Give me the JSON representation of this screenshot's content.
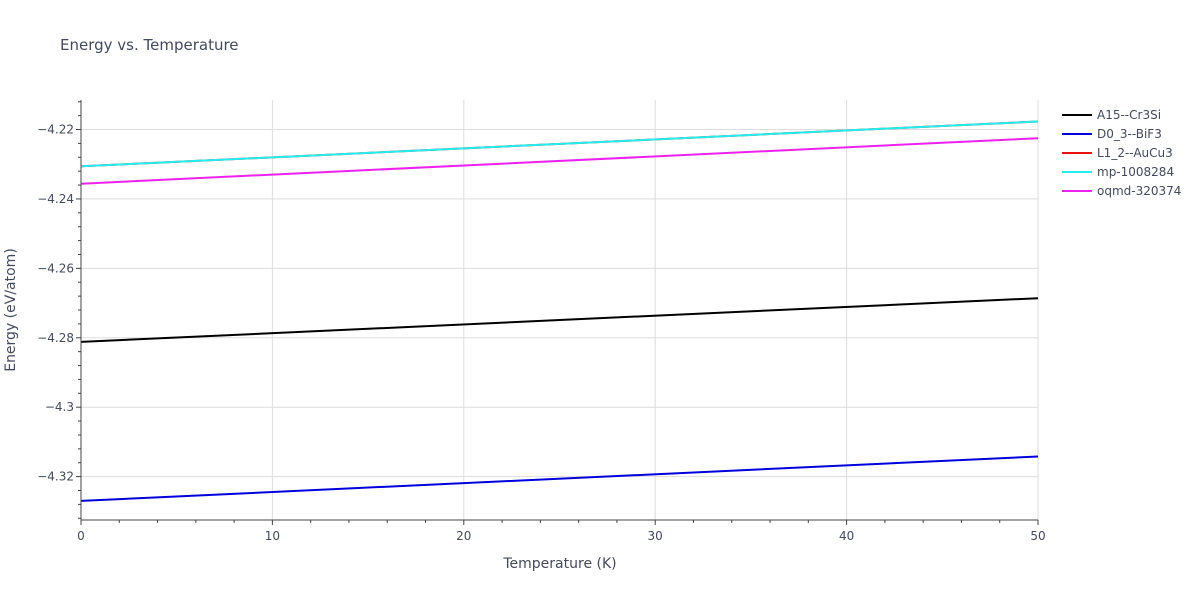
{
  "chart_data": {
    "type": "line",
    "title": "Energy vs. Temperature",
    "xlabel": "Temperature (K)",
    "ylabel": "Energy (eV/atom)",
    "xlim": [
      0,
      50
    ],
    "ylim": [
      -4.3325,
      -4.2115
    ],
    "xticks": [
      0,
      10,
      20,
      30,
      40,
      50
    ],
    "xtick_labels": [
      "0",
      "10",
      "20",
      "30",
      "40",
      "50"
    ],
    "yticks": [
      -4.32,
      -4.3,
      -4.28,
      -4.26,
      -4.24,
      -4.22
    ],
    "ytick_labels": [
      "−4.32",
      "−4.3",
      "−4.28",
      "−4.26",
      "−4.24",
      "−4.22"
    ],
    "grid": true,
    "legend_position": "top-right",
    "series": [
      {
        "name": "A15--Cr3Si",
        "color": "#000000",
        "x": [
          0,
          50
        ],
        "y": [
          -4.2812,
          -4.2686
        ]
      },
      {
        "name": "D0_3--BiF3",
        "color": "#0000dd",
        "x": [
          0,
          50
        ],
        "y": [
          -4.327,
          -4.3142
        ]
      },
      {
        "name": "L1_2--AuCu3",
        "color": "#ee1111",
        "x": [
          0,
          50
        ],
        "y": [
          -4.2306,
          -4.2177
        ]
      },
      {
        "name": "mp-1008284",
        "color": "#22eeee",
        "x": [
          0,
          50
        ],
        "y": [
          -4.2306,
          -4.2177
        ]
      },
      {
        "name": "oqmd-320374",
        "color": "#ee22ee",
        "x": [
          0,
          50
        ],
        "y": [
          -4.2356,
          -4.2225
        ]
      }
    ]
  }
}
